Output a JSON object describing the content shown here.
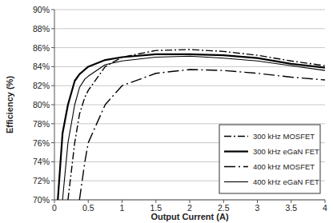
{
  "chart_data": {
    "type": "line",
    "x_label": "Output Current (A)",
    "y_label": "Efficiency (%)",
    "x": [
      0.05,
      0.1,
      0.12,
      0.2,
      0.3,
      0.37,
      0.45,
      0.5,
      0.75,
      1,
      1.5,
      2,
      2.5,
      3,
      3.5,
      4
    ],
    "series": [
      {
        "name": "300 kHz MOSFET",
        "color": "#000000",
        "line_style": "dash-dot",
        "values": [
          null,
          null,
          null,
          70,
          76,
          79,
          80.8,
          81.5,
          84,
          85,
          85.7,
          85.8,
          85.6,
          85.2,
          84.6,
          84.1
        ]
      },
      {
        "name": "300 kHz eGaN FET",
        "color": "#000000",
        "line_style": "solid",
        "values": [
          70,
          75,
          77,
          80,
          82.5,
          83.2,
          83.7,
          84,
          84.7,
          85,
          85.3,
          85.3,
          85.2,
          84.9,
          84.3,
          83.9
        ]
      },
      {
        "name": "400 kHz MOSFET",
        "color": "#000000",
        "line_style": "long-dash-dot",
        "values": [
          null,
          null,
          null,
          null,
          null,
          70,
          74,
          76,
          80,
          82,
          83.3,
          83.7,
          83.6,
          83.3,
          82.9,
          82.6
        ]
      },
      {
        "name": "400 kHz eGaN FET",
        "color": "#000000",
        "line_style": "solid",
        "values": [
          null,
          null,
          70,
          76,
          80,
          81.8,
          82.7,
          83,
          84.2,
          84.6,
          85,
          85.1,
          84.9,
          84.6,
          84.1,
          83.6
        ]
      }
    ],
    "xlim": [
      0,
      4
    ],
    "xticks": [
      0,
      0.5,
      1,
      1.5,
      2,
      2.5,
      3,
      3.5,
      4
    ],
    "ylim": [
      70,
      90
    ],
    "yticks": [
      {
        "value": 70,
        "label": "70%"
      },
      {
        "value": 72,
        "label": "72%"
      },
      {
        "value": 74,
        "label": "74%"
      },
      {
        "value": 76,
        "label": "76%"
      },
      {
        "value": 78,
        "label": "78%"
      },
      {
        "value": 80,
        "label": "80%"
      },
      {
        "value": 82,
        "label": "82%"
      },
      {
        "value": 84,
        "label": "84%"
      },
      {
        "value": 86,
        "label": "86%"
      },
      {
        "value": 88,
        "label": "88%"
      },
      {
        "value": 90,
        "label": "90%"
      }
    ],
    "grid": true,
    "legend": "lower right"
  }
}
